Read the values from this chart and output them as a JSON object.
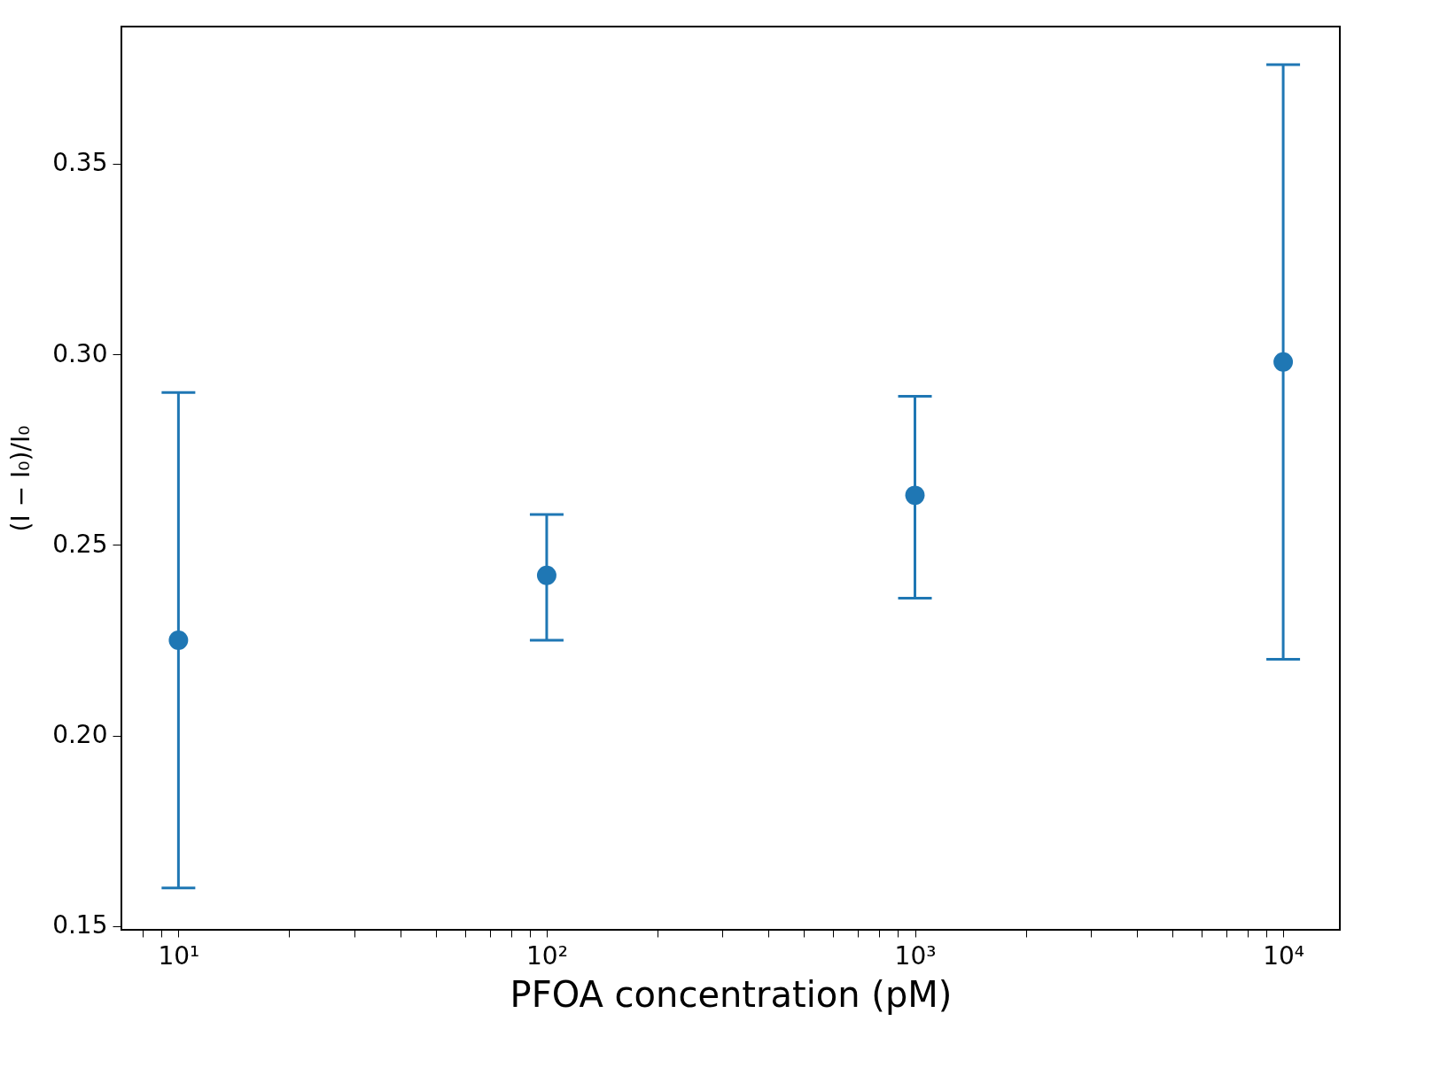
{
  "chart_data": {
    "type": "scatter",
    "xlabel": "PFOA concentration (pM)",
    "ylabel": "(I − I₀)/I₀",
    "log": "x",
    "marker": "circle",
    "grid": false,
    "x": [
      10,
      100,
      1000,
      10000
    ],
    "series": [
      {
        "color": "#1f77b4",
        "values": [
          0.225,
          0.242,
          0.263,
          0.298
        ],
        "errors": [
          [
            0.16,
            0.29
          ],
          [
            0.225,
            0.258
          ],
          [
            0.236,
            0.289
          ],
          [
            0.22,
            0.376
          ]
        ]
      }
    ],
    "xlim": [
      7,
      14250
    ],
    "ylim": [
      0.149,
      0.386
    ],
    "xticks": [
      {
        "value": 8,
        "label": null
      },
      {
        "value": 9,
        "label": null
      },
      {
        "value": 10,
        "label": "10¹"
      },
      {
        "value": 20,
        "label": null
      },
      {
        "value": 30,
        "label": null
      },
      {
        "value": 40,
        "label": null
      },
      {
        "value": 50,
        "label": null
      },
      {
        "value": 60,
        "label": null
      },
      {
        "value": 70,
        "label": null
      },
      {
        "value": 80,
        "label": null
      },
      {
        "value": 90,
        "label": null
      },
      {
        "value": 100,
        "label": "10²"
      },
      {
        "value": 200,
        "label": null
      },
      {
        "value": 300,
        "label": null
      },
      {
        "value": 400,
        "label": null
      },
      {
        "value": 500,
        "label": null
      },
      {
        "value": 600,
        "label": null
      },
      {
        "value": 700,
        "label": null
      },
      {
        "value": 800,
        "label": null
      },
      {
        "value": 900,
        "label": null
      },
      {
        "value": 1000,
        "label": "10³"
      },
      {
        "value": 2000,
        "label": null
      },
      {
        "value": 3000,
        "label": null
      },
      {
        "value": 4000,
        "label": null
      },
      {
        "value": 5000,
        "label": null
      },
      {
        "value": 6000,
        "label": null
      },
      {
        "value": 7000,
        "label": null
      },
      {
        "value": 8000,
        "label": null
      },
      {
        "value": 9000,
        "label": null
      },
      {
        "value": 10000,
        "label": "10⁴"
      }
    ],
    "yticks": [
      0.15,
      {
        "value": 0.2,
        "label": "0.20"
      },
      0.25,
      {
        "value": 0.3,
        "label": "0.30"
      },
      0.35
    ]
  }
}
